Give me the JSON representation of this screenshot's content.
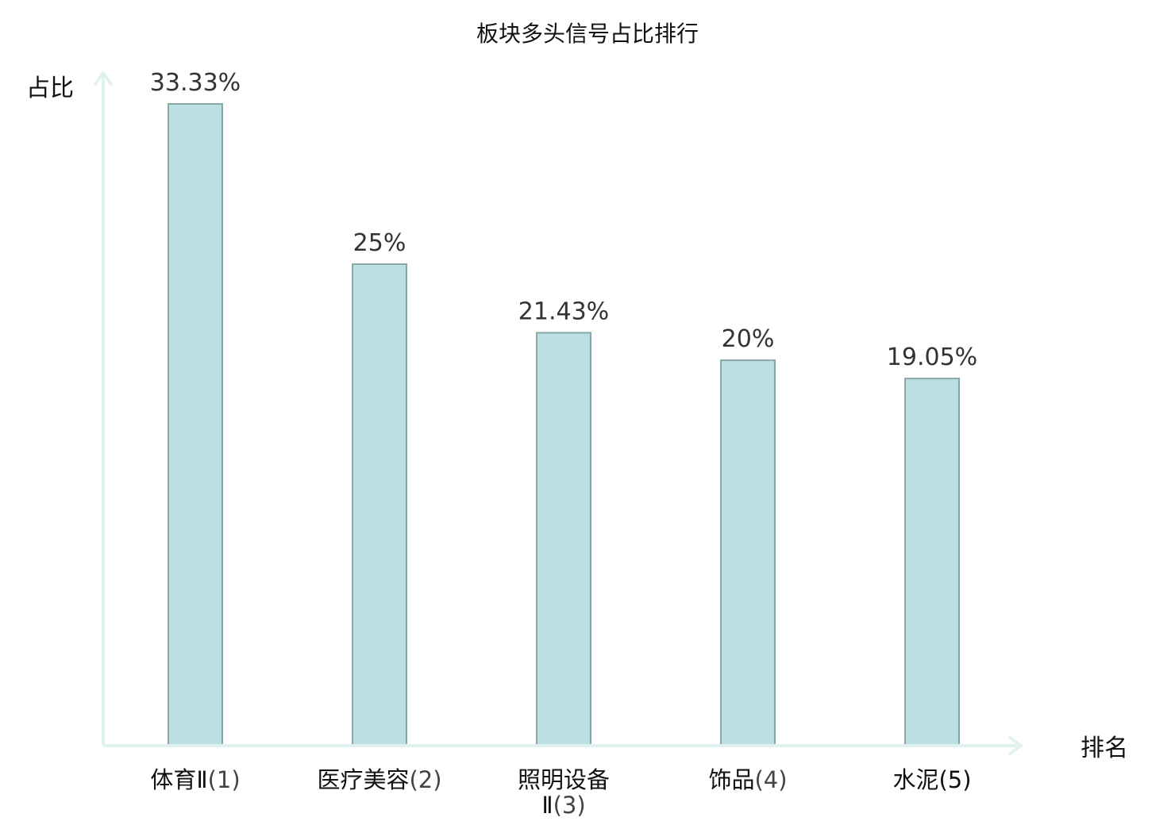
{
  "chart_data": {
    "type": "bar",
    "title": "板块多头信号占比排行",
    "xlabel": "排名",
    "ylabel": "占比",
    "categories": [
      {
        "name": "体育Ⅱ",
        "name_line2": "",
        "rank": "(1)",
        "highlight": false
      },
      {
        "name": "医疗美容",
        "name_line2": "",
        "rank": "(2)",
        "highlight": false
      },
      {
        "name": "照明设备",
        "name_line2": "Ⅱ",
        "rank": "(3)",
        "highlight": false
      },
      {
        "name": "饰品",
        "name_line2": "",
        "rank": "(4)",
        "highlight": false
      },
      {
        "name": "水泥",
        "name_line2": "",
        "rank": "(5)",
        "highlight": true
      }
    ],
    "values": [
      33.33,
      25,
      21.43,
      20,
      19.05
    ],
    "value_labels": [
      "33.33%",
      "25%",
      "21.43%",
      "20%",
      "19.05%"
    ],
    "ylim": [
      0,
      33.33
    ],
    "grid": false,
    "colors": {
      "bar_fill": "#bce0e1",
      "bar_stroke": "#86a6a7",
      "axis": "#e0f2ef",
      "highlight_text": "#dd1111"
    }
  }
}
